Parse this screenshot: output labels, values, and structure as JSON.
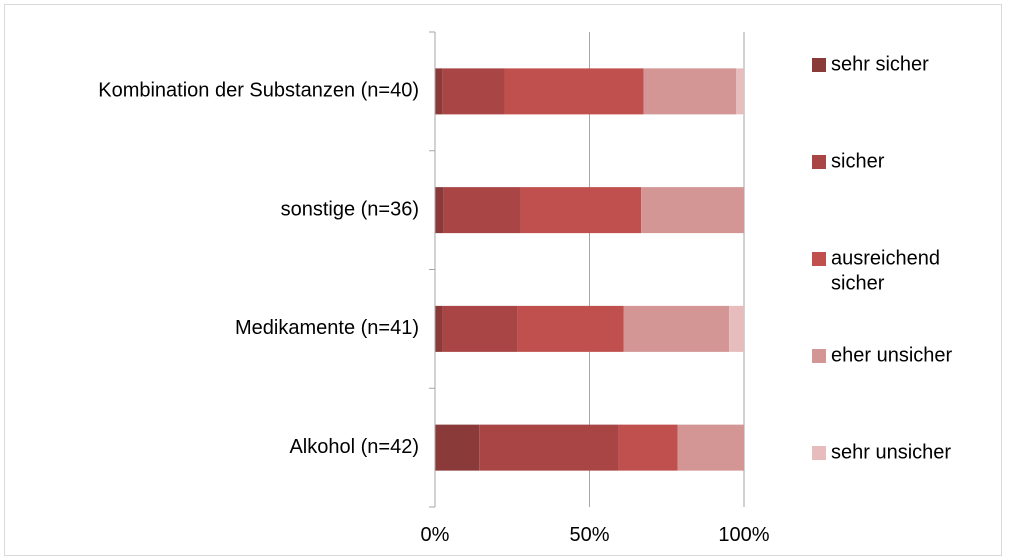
{
  "chart_data": {
    "type": "bar",
    "orientation": "horizontal",
    "stacked": "percent",
    "categories": [
      "Kombination der Substanzen (n=40)",
      "sonstige (n=36)",
      "Medikamente (n=41)",
      "Alkohol (n=42)"
    ],
    "series": [
      {
        "name": "sehr sicher",
        "color": "#8b3a3a",
        "values": [
          2.5,
          2.8,
          2.4,
          14.3
        ]
      },
      {
        "name": "sicher",
        "color": "#a94545",
        "values": [
          20.0,
          25.0,
          24.4,
          45.2
        ]
      },
      {
        "name": "ausreichend sicher",
        "color": "#c0504d",
        "values": [
          45.0,
          38.9,
          34.2,
          19.0
        ]
      },
      {
        "name": "eher unsicher",
        "color": "#d49595",
        "values": [
          30.0,
          33.3,
          34.2,
          21.5
        ]
      },
      {
        "name": "sehr unsicher",
        "color": "#e6bcbc",
        "values": [
          2.5,
          0.0,
          4.8,
          0.0
        ]
      }
    ],
    "xlim": [
      0,
      100
    ],
    "xticks": [
      "0%",
      "50%",
      "100%"
    ],
    "grid": true,
    "legend_position": "right"
  }
}
